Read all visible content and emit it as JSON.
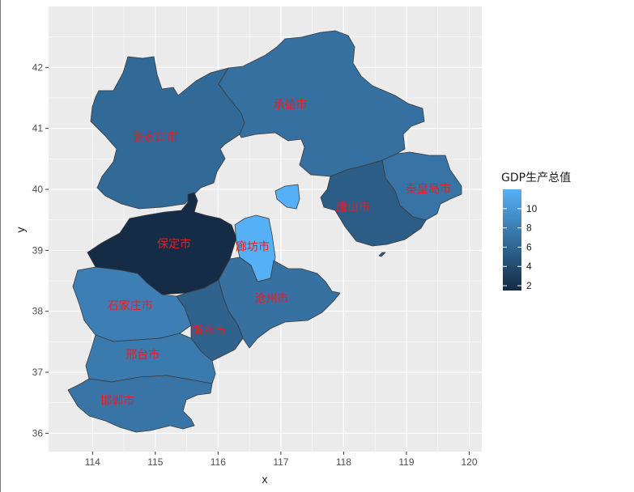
{
  "chart_data": {
    "type": "choropleth",
    "title": "",
    "xlabel": "x",
    "ylabel": "y",
    "xlim": [
      113.3,
      120.2
    ],
    "ylim": [
      35.7,
      43.0
    ],
    "xticks": [
      114,
      115,
      116,
      117,
      118,
      119,
      120
    ],
    "yticks": [
      36,
      37,
      38,
      39,
      40,
      41,
      42
    ],
    "grid": true,
    "legend": {
      "title": "GDP生产总值",
      "placement": "right",
      "range": [
        1.5,
        12
      ],
      "ticks": [
        2,
        4,
        6,
        8,
        10
      ],
      "color_low": "#132B43",
      "color_high": "#56B1F7"
    },
    "regions": [
      {
        "name": "张家口市",
        "value": 6.4,
        "label_x": 115.0,
        "label_y": 40.85
      },
      {
        "name": "承德市",
        "value": 6.9,
        "label_x": 117.15,
        "label_y": 41.38
      },
      {
        "name": "秦皇岛市",
        "value": 7.2,
        "label_x": 119.35,
        "label_y": 40.0
      },
      {
        "name": "唐山市",
        "value": 5.4,
        "label_x": 118.15,
        "label_y": 39.7
      },
      {
        "name": "保定市",
        "value": 1.6,
        "label_x": 115.3,
        "label_y": 39.1
      },
      {
        "name": "廊坊市",
        "value": 11.9,
        "label_x": 116.55,
        "label_y": 39.05
      },
      {
        "name": "石家庄市",
        "value": 8.1,
        "label_x": 114.6,
        "label_y": 38.08
      },
      {
        "name": "沧州市",
        "value": 7.0,
        "label_x": 116.85,
        "label_y": 38.2
      },
      {
        "name": "衡水市",
        "value": 5.9,
        "label_x": 115.85,
        "label_y": 37.68
      },
      {
        "name": "邢台市",
        "value": 7.7,
        "label_x": 114.8,
        "label_y": 37.28
      },
      {
        "name": "邯郸市",
        "value": 7.3,
        "label_x": 114.4,
        "label_y": 36.52
      }
    ]
  }
}
